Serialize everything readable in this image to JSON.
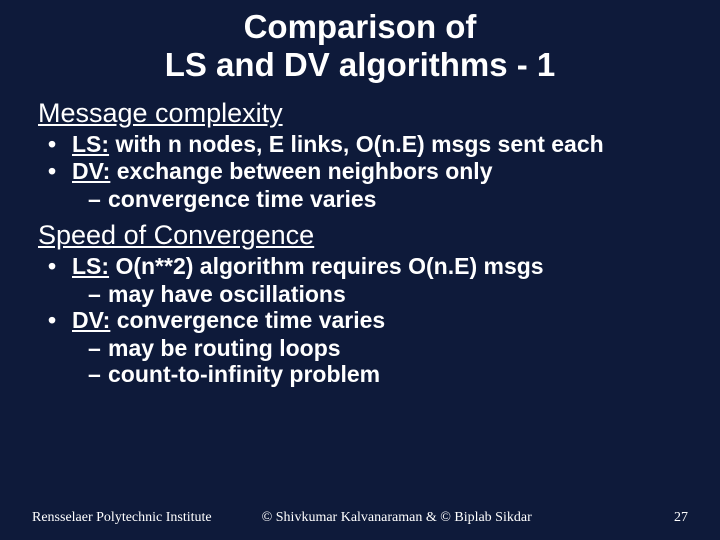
{
  "colors": {
    "background": "#0e1a3a",
    "text": "#ffffff"
  },
  "title_line1": "Comparison of",
  "title_line2": "LS and DV algorithms - 1",
  "sections": [
    {
      "heading": "Message complexity",
      "bullets": [
        {
          "label": "LS:",
          "text": " with n nodes, E links, O(n.E) msgs sent each",
          "subs": []
        },
        {
          "label": "DV:",
          "text": " exchange between neighbors only",
          "subs": [
            "convergence time varies"
          ]
        }
      ]
    },
    {
      "heading": "Speed of Convergence",
      "bullets": [
        {
          "label": "LS:",
          "text": " O(n**2) algorithm requires O(n.E) msgs",
          "subs": [
            "may have oscillations"
          ]
        },
        {
          "label": "DV:",
          "text": " convergence time varies",
          "subs": [
            "may be routing loops",
            "count-to-infinity problem"
          ]
        }
      ]
    }
  ],
  "footer": {
    "institute": "Rensselaer Polytechnic Institute",
    "credits": "© Shivkumar Kalvanaraman   &   © Biplab Sikdar",
    "page": "27"
  }
}
